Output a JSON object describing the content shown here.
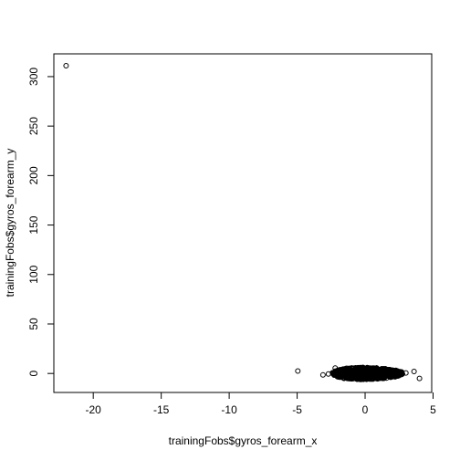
{
  "chart_data": {
    "type": "scatter",
    "title": "",
    "xlabel": "trainingFobs$gyros_forearm_x",
    "ylabel": "trainingFobs$gyros_forearm_y",
    "xlim": [
      -22.9,
      4.9
    ],
    "ylim": [
      -19.2,
      323
    ],
    "x_ticks": [
      -20,
      -15,
      -10,
      -5,
      0,
      5
    ],
    "y_ticks": [
      0,
      50,
      100,
      150,
      200,
      250,
      300
    ],
    "grid": false,
    "marker": "open-circle",
    "points": [
      [
        -22.0,
        311.0
      ],
      [
        -4.95,
        2.5
      ],
      [
        4.0,
        -5.0
      ],
      [
        3.6,
        2.0
      ],
      [
        -3.1,
        -1.5
      ],
      [
        -2.7,
        -0.5
      ],
      [
        -2.4,
        0.8
      ],
      [
        -2.2,
        5.5
      ],
      [
        -1.9,
        -1.0
      ],
      [
        -1.6,
        3.5
      ],
      [
        -1.3,
        1.0
      ],
      [
        -1.0,
        5.0
      ],
      [
        -0.7,
        -2.0
      ],
      [
        -0.4,
        4.0
      ],
      [
        -0.1,
        0.5
      ],
      [
        0.2,
        3.0
      ],
      [
        0.5,
        -3.0
      ],
      [
        0.8,
        2.0
      ],
      [
        1.1,
        -4.0
      ],
      [
        1.4,
        0.0
      ],
      [
        1.7,
        -1.5
      ],
      [
        2.0,
        -0.5
      ],
      [
        2.3,
        0.5
      ],
      [
        2.6,
        -1.0
      ],
      [
        3.0,
        0.5
      ]
    ],
    "dense_clusters": [
      {
        "x_range": [
          -2.4,
          2.8
        ],
        "y_range": [
          -6.0,
          6.0
        ]
      }
    ]
  }
}
